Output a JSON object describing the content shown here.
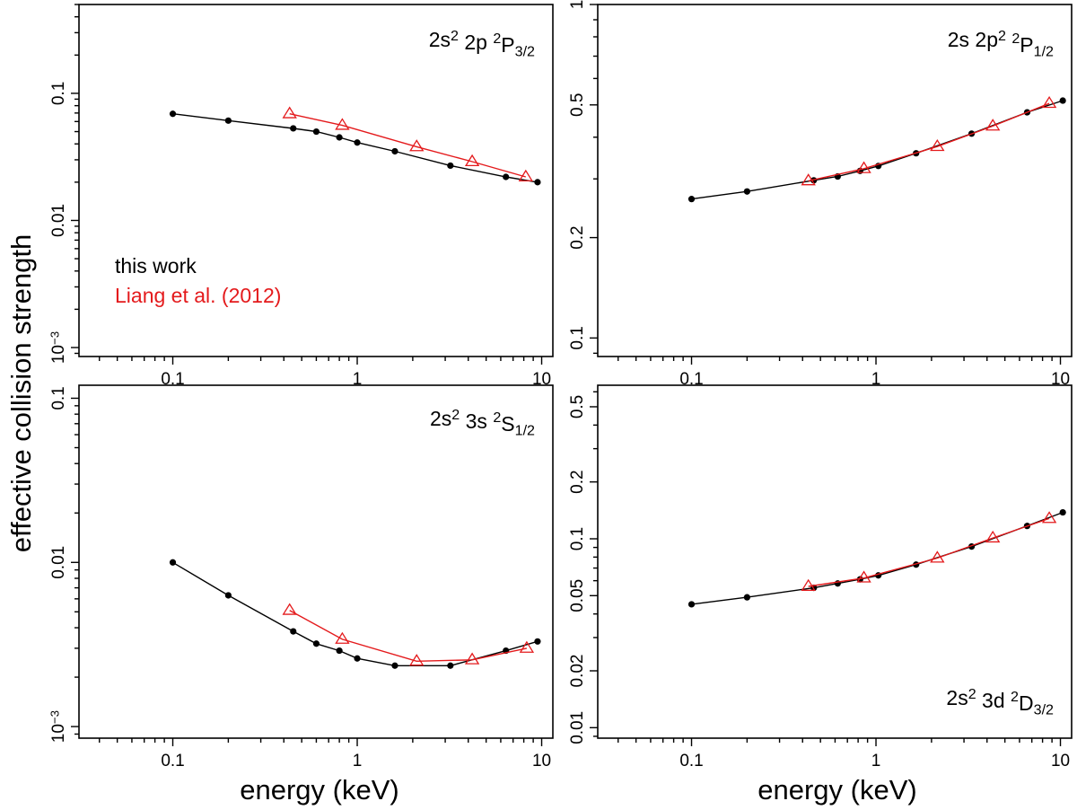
{
  "figure": {
    "ylabel": "effective collision strength",
    "xlabel": "energy (keV)"
  },
  "legend": {
    "entries": [
      {
        "label": "this work",
        "color": "#000000"
      },
      {
        "label": "Liang et al. (2012)",
        "color": "#e41a1c"
      }
    ]
  },
  "colors": {
    "this_work": "#000000",
    "liang": "#e41a1c",
    "axes": "#000000"
  },
  "chart_data": [
    {
      "type": "line",
      "panel": "top-left",
      "title_parts": [
        {
          "t": "2s"
        },
        {
          "t": "2",
          "sup": true
        },
        {
          "t": " 2p "
        },
        {
          "t": "2",
          "sup": true
        },
        {
          "t": "P"
        },
        {
          "t": "3/2",
          "sub": true
        }
      ],
      "xlabel": "",
      "ylabel": "effective collision strength",
      "xscale": "log",
      "yscale": "log",
      "xlim": [
        0.031,
        11.5
      ],
      "ylim": [
        0.00085,
        0.5
      ],
      "xticks": [
        {
          "v": 0.1,
          "label": "0.1"
        },
        {
          "v": 1,
          "label": "1"
        },
        {
          "v": 10,
          "label": "10"
        }
      ],
      "yticks": [
        {
          "v": 0.001,
          "parts": [
            {
              "t": "10"
            },
            {
              "t": "−3",
              "sup": true
            }
          ]
        },
        {
          "v": 0.01,
          "parts": [
            {
              "t": "0.01"
            }
          ]
        },
        {
          "v": 0.1,
          "parts": [
            {
              "t": "0.1"
            }
          ]
        }
      ],
      "series": [
        {
          "name": "this work",
          "marker": "circle",
          "x": [
            0.1,
            0.2,
            0.45,
            0.6,
            0.8,
            1.0,
            1.6,
            3.2,
            6.4,
            9.5
          ],
          "y": [
            0.069,
            0.061,
            0.053,
            0.05,
            0.045,
            0.041,
            0.035,
            0.027,
            0.022,
            0.02
          ]
        },
        {
          "name": "Liang et al. (2012)",
          "marker": "triangle",
          "x": [
            0.43,
            0.83,
            2.1,
            4.2,
            8.2
          ],
          "y": [
            0.069,
            0.056,
            0.038,
            0.029,
            0.022
          ]
        }
      ],
      "legend_position": "left",
      "grid": false
    },
    {
      "type": "line",
      "panel": "top-right",
      "title_parts": [
        {
          "t": "2s 2p"
        },
        {
          "t": "2",
          "sup": true
        },
        {
          "t": " "
        },
        {
          "t": "2",
          "sup": true
        },
        {
          "t": "P"
        },
        {
          "t": "1/2",
          "sub": true
        }
      ],
      "xlabel": "",
      "ylabel": "effective collision strength",
      "xscale": "log",
      "yscale": "log",
      "xlim": [
        0.031,
        11.5
      ],
      "ylim": [
        0.088,
        1.0
      ],
      "xticks": [
        {
          "v": 0.1,
          "label": "0.1"
        },
        {
          "v": 1,
          "label": "1"
        },
        {
          "v": 10,
          "label": "10"
        }
      ],
      "yticks": [
        {
          "v": 0.1,
          "parts": [
            {
              "t": "0.1"
            }
          ]
        },
        {
          "v": 0.2,
          "parts": [
            {
              "t": "0.2"
            }
          ]
        },
        {
          "v": 0.5,
          "parts": [
            {
              "t": "0.5"
            }
          ]
        },
        {
          "v": 1,
          "parts": [
            {
              "t": "1"
            }
          ]
        }
      ],
      "series": [
        {
          "name": "this work",
          "marker": "circle",
          "x": [
            0.1,
            0.2,
            0.46,
            0.62,
            0.82,
            1.03,
            1.65,
            3.3,
            6.6,
            10.3
          ],
          "y": [
            0.261,
            0.275,
            0.297,
            0.305,
            0.317,
            0.328,
            0.358,
            0.41,
            0.475,
            0.515
          ]
        },
        {
          "name": "Liang et al. (2012)",
          "marker": "triangle",
          "x": [
            0.43,
            0.86,
            2.15,
            4.3,
            8.7
          ],
          "y": [
            0.296,
            0.322,
            0.375,
            0.432,
            0.505
          ]
        }
      ],
      "grid": false
    },
    {
      "type": "line",
      "panel": "bottom-left",
      "title_parts": [
        {
          "t": "2s"
        },
        {
          "t": "2",
          "sup": true
        },
        {
          "t": " 3s "
        },
        {
          "t": "2",
          "sup": true
        },
        {
          "t": "S"
        },
        {
          "t": "1/2",
          "sub": true
        }
      ],
      "xlabel": "energy (keV)",
      "ylabel": "effective collision strength",
      "xscale": "log",
      "yscale": "log",
      "xlim": [
        0.031,
        11.5
      ],
      "ylim": [
        0.00085,
        0.12
      ],
      "xticks": [
        {
          "v": 0.1,
          "label": "0.1"
        },
        {
          "v": 1,
          "label": "1"
        },
        {
          "v": 10,
          "label": "10"
        }
      ],
      "yticks": [
        {
          "v": 0.001,
          "parts": [
            {
              "t": "10"
            },
            {
              "t": "−3",
              "sup": true
            }
          ]
        },
        {
          "v": 0.01,
          "parts": [
            {
              "t": "0.01"
            }
          ]
        },
        {
          "v": 0.1,
          "parts": [
            {
              "t": "0.1"
            }
          ]
        }
      ],
      "series": [
        {
          "name": "this work",
          "marker": "circle",
          "x": [
            0.1,
            0.2,
            0.45,
            0.6,
            0.8,
            1.0,
            1.6,
            3.2,
            6.4,
            9.5
          ],
          "y": [
            0.01,
            0.0063,
            0.0038,
            0.0032,
            0.0029,
            0.0026,
            0.00235,
            0.00235,
            0.0029,
            0.0033
          ]
        },
        {
          "name": "Liang et al. (2012)",
          "marker": "triangle",
          "x": [
            0.43,
            0.83,
            2.1,
            4.2,
            8.3
          ],
          "y": [
            0.0051,
            0.0034,
            0.0025,
            0.00255,
            0.003
          ]
        }
      ],
      "grid": false
    },
    {
      "type": "line",
      "panel": "bottom-right",
      "title_parts": [
        {
          "t": "2s"
        },
        {
          "t": "2",
          "sup": true
        },
        {
          "t": " 3d "
        },
        {
          "t": "2",
          "sup": true
        },
        {
          "t": "D"
        },
        {
          "t": "3/2",
          "sub": true
        }
      ],
      "xlabel": "energy (keV)",
      "ylabel": "effective collision strength",
      "xscale": "log",
      "yscale": "log",
      "xlim": [
        0.031,
        11.5
      ],
      "ylim": [
        0.0088,
        0.65
      ],
      "xticks": [
        {
          "v": 0.1,
          "label": "0.1"
        },
        {
          "v": 1,
          "label": "1"
        },
        {
          "v": 10,
          "label": "10"
        }
      ],
      "yticks": [
        {
          "v": 0.01,
          "parts": [
            {
              "t": "0.01"
            }
          ]
        },
        {
          "v": 0.02,
          "parts": [
            {
              "t": "0.02"
            }
          ]
        },
        {
          "v": 0.05,
          "parts": [
            {
              "t": "0.05"
            }
          ]
        },
        {
          "v": 0.1,
          "parts": [
            {
              "t": "0.1"
            }
          ]
        },
        {
          "v": 0.2,
          "parts": [
            {
              "t": "0.2"
            }
          ]
        },
        {
          "v": 0.5,
          "parts": [
            {
              "t": "0.5"
            }
          ]
        }
      ],
      "series": [
        {
          "name": "this work",
          "marker": "circle",
          "x": [
            0.1,
            0.2,
            0.46,
            0.62,
            0.82,
            1.03,
            1.65,
            3.3,
            6.6,
            10.3
          ],
          "y": [
            0.045,
            0.049,
            0.055,
            0.058,
            0.061,
            0.064,
            0.073,
            0.091,
            0.117,
            0.138
          ]
        },
        {
          "name": "Liang et al. (2012)",
          "marker": "triangle",
          "x": [
            0.43,
            0.86,
            2.15,
            4.3,
            8.7
          ],
          "y": [
            0.056,
            0.062,
            0.079,
            0.101,
            0.128
          ]
        }
      ],
      "grid": false
    }
  ]
}
